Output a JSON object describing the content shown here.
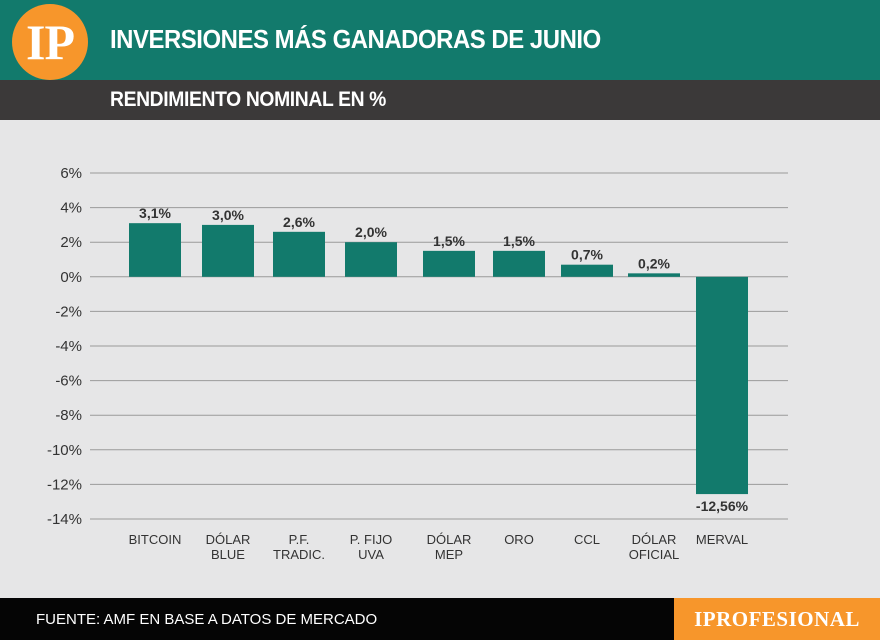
{
  "header": {
    "logo_text": "IP",
    "title": "INVERSIONES MÁS GANADORAS DE JUNIO",
    "subtitle": "RENDIMIENTO NOMINAL EN %"
  },
  "footer": {
    "source": "FUENTE: AMF EN BASE A DATOS DE MERCADO",
    "brand": "IPROFESIONAL"
  },
  "colors": {
    "primary": "#127a6c",
    "accent": "#f7962b",
    "dark_band": "#3b3939",
    "background": "#e6e6e7"
  },
  "chart_data": {
    "type": "bar",
    "title": "RENDIMIENTO NOMINAL EN %",
    "categories": [
      [
        "BITCOIN"
      ],
      [
        "DÓLAR",
        "BLUE"
      ],
      [
        "P.F.",
        "TRADIC."
      ],
      [
        "P. FIJO",
        "UVA"
      ],
      [
        "DÓLAR",
        "MEP"
      ],
      [
        "ORO"
      ],
      [
        "CCL"
      ],
      [
        "DÓLAR",
        "OFICIAL"
      ],
      [
        "MERVAL"
      ]
    ],
    "values": [
      3.1,
      3.0,
      2.6,
      2.0,
      1.5,
      1.5,
      0.7,
      0.2,
      -12.56
    ],
    "data_labels": [
      "3,1%",
      "3,0%",
      "2,6%",
      "2,0%",
      "1,5%",
      "1,5%",
      "0,7%",
      "0,2%",
      "-12,56%"
    ],
    "yticks": [
      6,
      4,
      2,
      0,
      -2,
      -4,
      -6,
      -8,
      -10,
      -12,
      -14
    ],
    "ytick_labels": [
      "6%",
      "4%",
      "2%",
      "0%",
      "-2%",
      "-4%",
      "-6%",
      "-8%",
      "-10%",
      "-12%",
      "-14%"
    ],
    "ylim": [
      -14,
      6
    ],
    "grid": true,
    "bar_color": "#127a6c"
  }
}
